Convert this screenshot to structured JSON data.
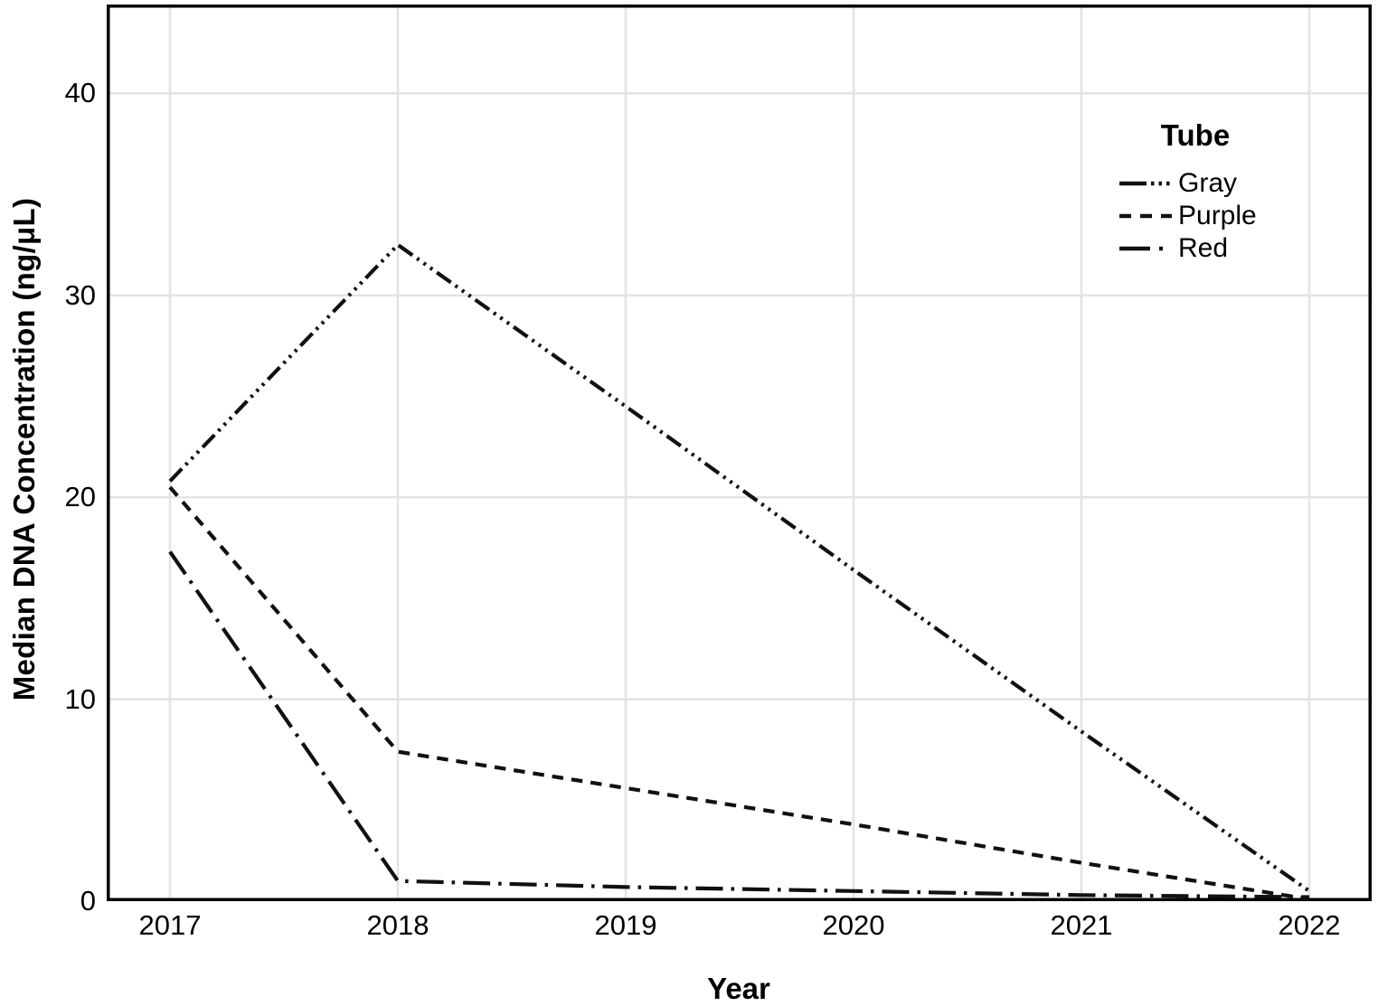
{
  "chart_data": {
    "type": "line",
    "title": "",
    "xlabel": "Year",
    "ylabel": "Median DNA Concentration (ng/μL)",
    "x": [
      2017,
      2018,
      2019,
      2020,
      2021,
      2022
    ],
    "series": [
      {
        "name": "Gray",
        "style": "dash-dot-dot-dot",
        "values": [
          20.8,
          32.5,
          24.5,
          16.4,
          8.4,
          0.5
        ]
      },
      {
        "name": "Purple",
        "style": "dashed",
        "values": [
          20.5,
          7.4,
          5.6,
          3.8,
          1.9,
          0.1
        ]
      },
      {
        "name": "Red",
        "style": "dash-dot",
        "values": [
          17.3,
          1.0,
          0.7,
          0.5,
          0.3,
          0.2
        ]
      }
    ],
    "ylim": [
      0,
      44.4
    ],
    "yticks": [
      0,
      10,
      20,
      30,
      40
    ],
    "grid": true,
    "legend_title": "Tube",
    "legend_position": "top-right-inside",
    "line_color": "#111111",
    "grid_color": "#e3e3e3",
    "frame_color": "#000000"
  }
}
